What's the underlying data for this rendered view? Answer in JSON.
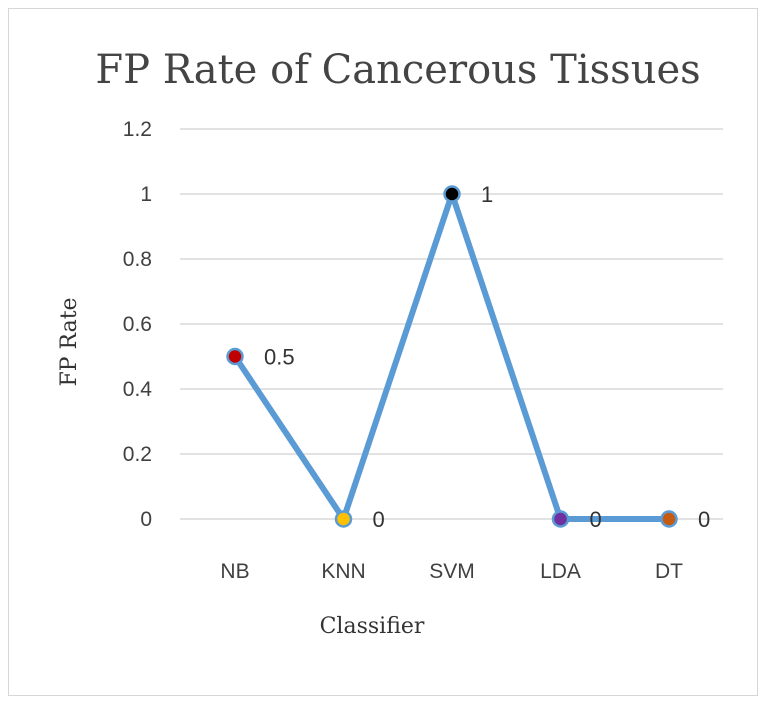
{
  "chart_data": {
    "type": "line",
    "title": "FP Rate of Cancerous Tissues",
    "xlabel": "Classifier",
    "ylabel": "FP Rate",
    "categories": [
      "NB",
      "KNN",
      "SVM",
      "LDA",
      "DT"
    ],
    "series": [
      {
        "values": [
          0.5,
          0,
          1,
          0,
          0
        ],
        "data_labels": [
          "0.5",
          "0",
          "1",
          "0",
          "0"
        ],
        "line_color": "#5b9bd5",
        "marker_colors": [
          "#c00000",
          "#ffc000",
          "#000000",
          "#7030a0",
          "#c55a11"
        ]
      }
    ],
    "ylim": [
      0,
      1.2
    ],
    "yticks": [
      0,
      0.2,
      0.4,
      0.6,
      0.8,
      1,
      1.2
    ],
    "ytick_labels": [
      "0",
      "0.2",
      "0.4",
      "0.6",
      "0.8",
      "1",
      "1.2"
    ],
    "grid": true,
    "legend": "none"
  }
}
